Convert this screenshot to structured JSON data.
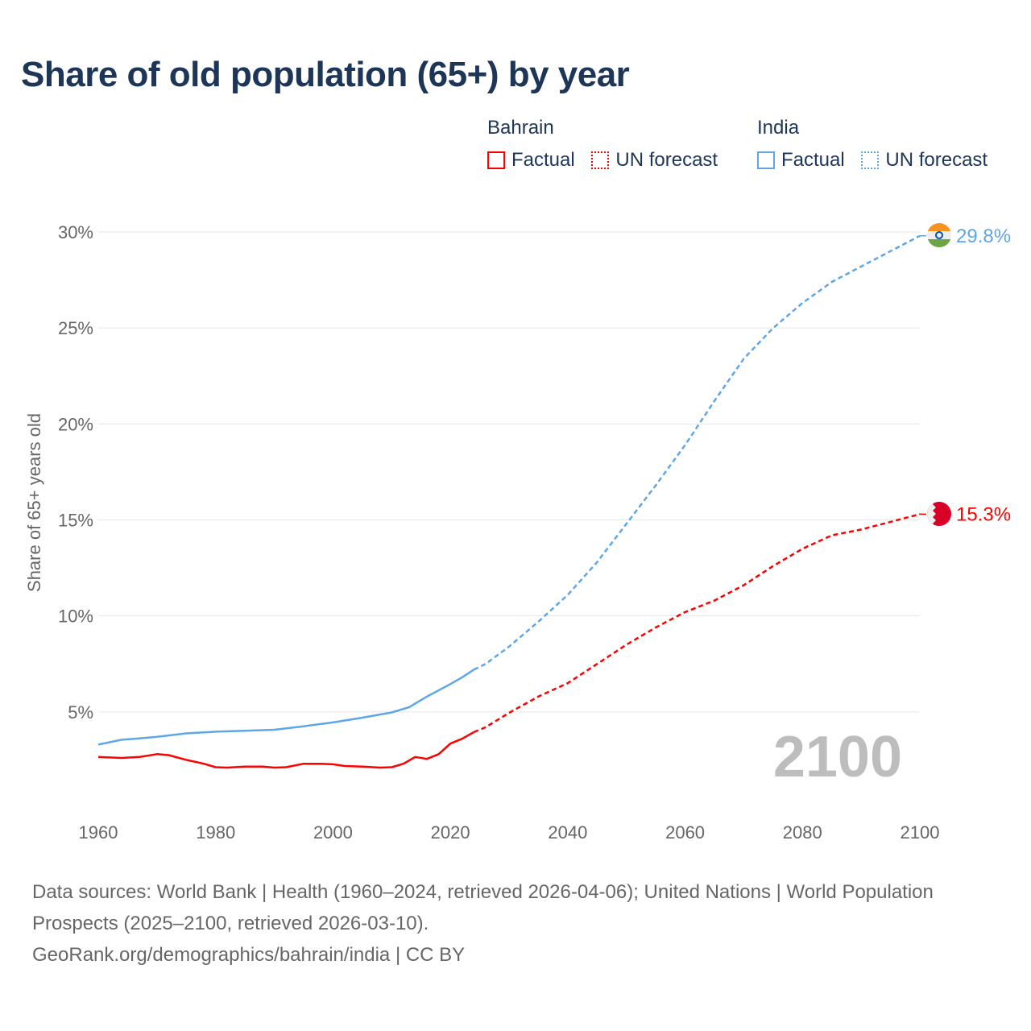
{
  "chart_data": {
    "type": "line",
    "title": "Share of old population (65+) by year",
    "ylabel": "Share of 65+ years old",
    "xlabel": "",
    "xlim": [
      1960,
      2100
    ],
    "ylim": [
      0,
      30
    ],
    "x_ticks": [
      "1960",
      "1980",
      "2000",
      "2020",
      "2040",
      "2060",
      "2080",
      "2100"
    ],
    "y_ticks": [
      {
        "v": 5,
        "label": "5%"
      },
      {
        "v": 10,
        "label": "10%"
      },
      {
        "v": 15,
        "label": "15%"
      },
      {
        "v": 20,
        "label": "20%"
      },
      {
        "v": 25,
        "label": "25%"
      },
      {
        "v": 30,
        "label": "30%"
      }
    ],
    "grid": true,
    "year_watermark": "2100",
    "forecast_start": 2024,
    "series": [
      {
        "name": "Bahrain",
        "color": "#ff0000",
        "end_label": "15.3%",
        "points": [
          [
            1960,
            2.65
          ],
          [
            1964,
            2.6
          ],
          [
            1967,
            2.65
          ],
          [
            1970,
            2.8
          ],
          [
            1972,
            2.75
          ],
          [
            1975,
            2.5
          ],
          [
            1978,
            2.3
          ],
          [
            1980,
            2.12
          ],
          [
            1982,
            2.1
          ],
          [
            1985,
            2.15
          ],
          [
            1988,
            2.15
          ],
          [
            1990,
            2.1
          ],
          [
            1992,
            2.12
          ],
          [
            1995,
            2.3
          ],
          [
            1998,
            2.3
          ],
          [
            2000,
            2.27
          ],
          [
            2002,
            2.18
          ],
          [
            2005,
            2.15
          ],
          [
            2008,
            2.1
          ],
          [
            2010,
            2.12
          ],
          [
            2012,
            2.3
          ],
          [
            2014,
            2.65
          ],
          [
            2016,
            2.55
          ],
          [
            2018,
            2.8
          ],
          [
            2020,
            3.35
          ],
          [
            2022,
            3.6
          ],
          [
            2024,
            3.95
          ],
          [
            2026,
            4.2
          ],
          [
            2030,
            4.95
          ],
          [
            2035,
            5.8
          ],
          [
            2040,
            6.5
          ],
          [
            2045,
            7.5
          ],
          [
            2050,
            8.5
          ],
          [
            2055,
            9.4
          ],
          [
            2060,
            10.2
          ],
          [
            2065,
            10.8
          ],
          [
            2070,
            11.6
          ],
          [
            2075,
            12.6
          ],
          [
            2080,
            13.5
          ],
          [
            2085,
            14.2
          ],
          [
            2090,
            14.5
          ],
          [
            2095,
            14.9
          ],
          [
            2100,
            15.3
          ]
        ]
      },
      {
        "name": "India",
        "color": "#5ea6e8",
        "end_label": "29.8%",
        "points": [
          [
            1960,
            3.3
          ],
          [
            1964,
            3.55
          ],
          [
            1967,
            3.62
          ],
          [
            1970,
            3.7
          ],
          [
            1975,
            3.88
          ],
          [
            1980,
            3.97
          ],
          [
            1985,
            4.02
          ],
          [
            1990,
            4.07
          ],
          [
            1995,
            4.25
          ],
          [
            2000,
            4.45
          ],
          [
            2005,
            4.7
          ],
          [
            2010,
            4.97
          ],
          [
            2013,
            5.25
          ],
          [
            2016,
            5.8
          ],
          [
            2020,
            6.45
          ],
          [
            2022,
            6.8
          ],
          [
            2024,
            7.2
          ],
          [
            2026,
            7.5
          ],
          [
            2030,
            8.4
          ],
          [
            2035,
            9.7
          ],
          [
            2040,
            11.1
          ],
          [
            2045,
            12.8
          ],
          [
            2050,
            14.8
          ],
          [
            2055,
            16.8
          ],
          [
            2060,
            18.9
          ],
          [
            2065,
            21.2
          ],
          [
            2070,
            23.4
          ],
          [
            2075,
            25.0
          ],
          [
            2080,
            26.3
          ],
          [
            2085,
            27.4
          ],
          [
            2090,
            28.2
          ],
          [
            2095,
            29.0
          ],
          [
            2100,
            29.8
          ]
        ]
      }
    ],
    "legend": {
      "placement": "top-right",
      "groups": [
        {
          "name": "Bahrain",
          "color": "#ff0000",
          "factual": "Factual",
          "forecast": "UN forecast"
        },
        {
          "name": "India",
          "color": "#5ea6e8",
          "factual": "Factual",
          "forecast": "UN forecast"
        }
      ]
    }
  },
  "footer": {
    "sources": "Data sources: World Bank | Health (1960–2024, retrieved 2026-04-06); United Nations | World Population Prospects (2025–2100, retrieved 2026-03-10).",
    "credit": "GeoRank.org/demographics/bahrain/india | CC BY"
  }
}
